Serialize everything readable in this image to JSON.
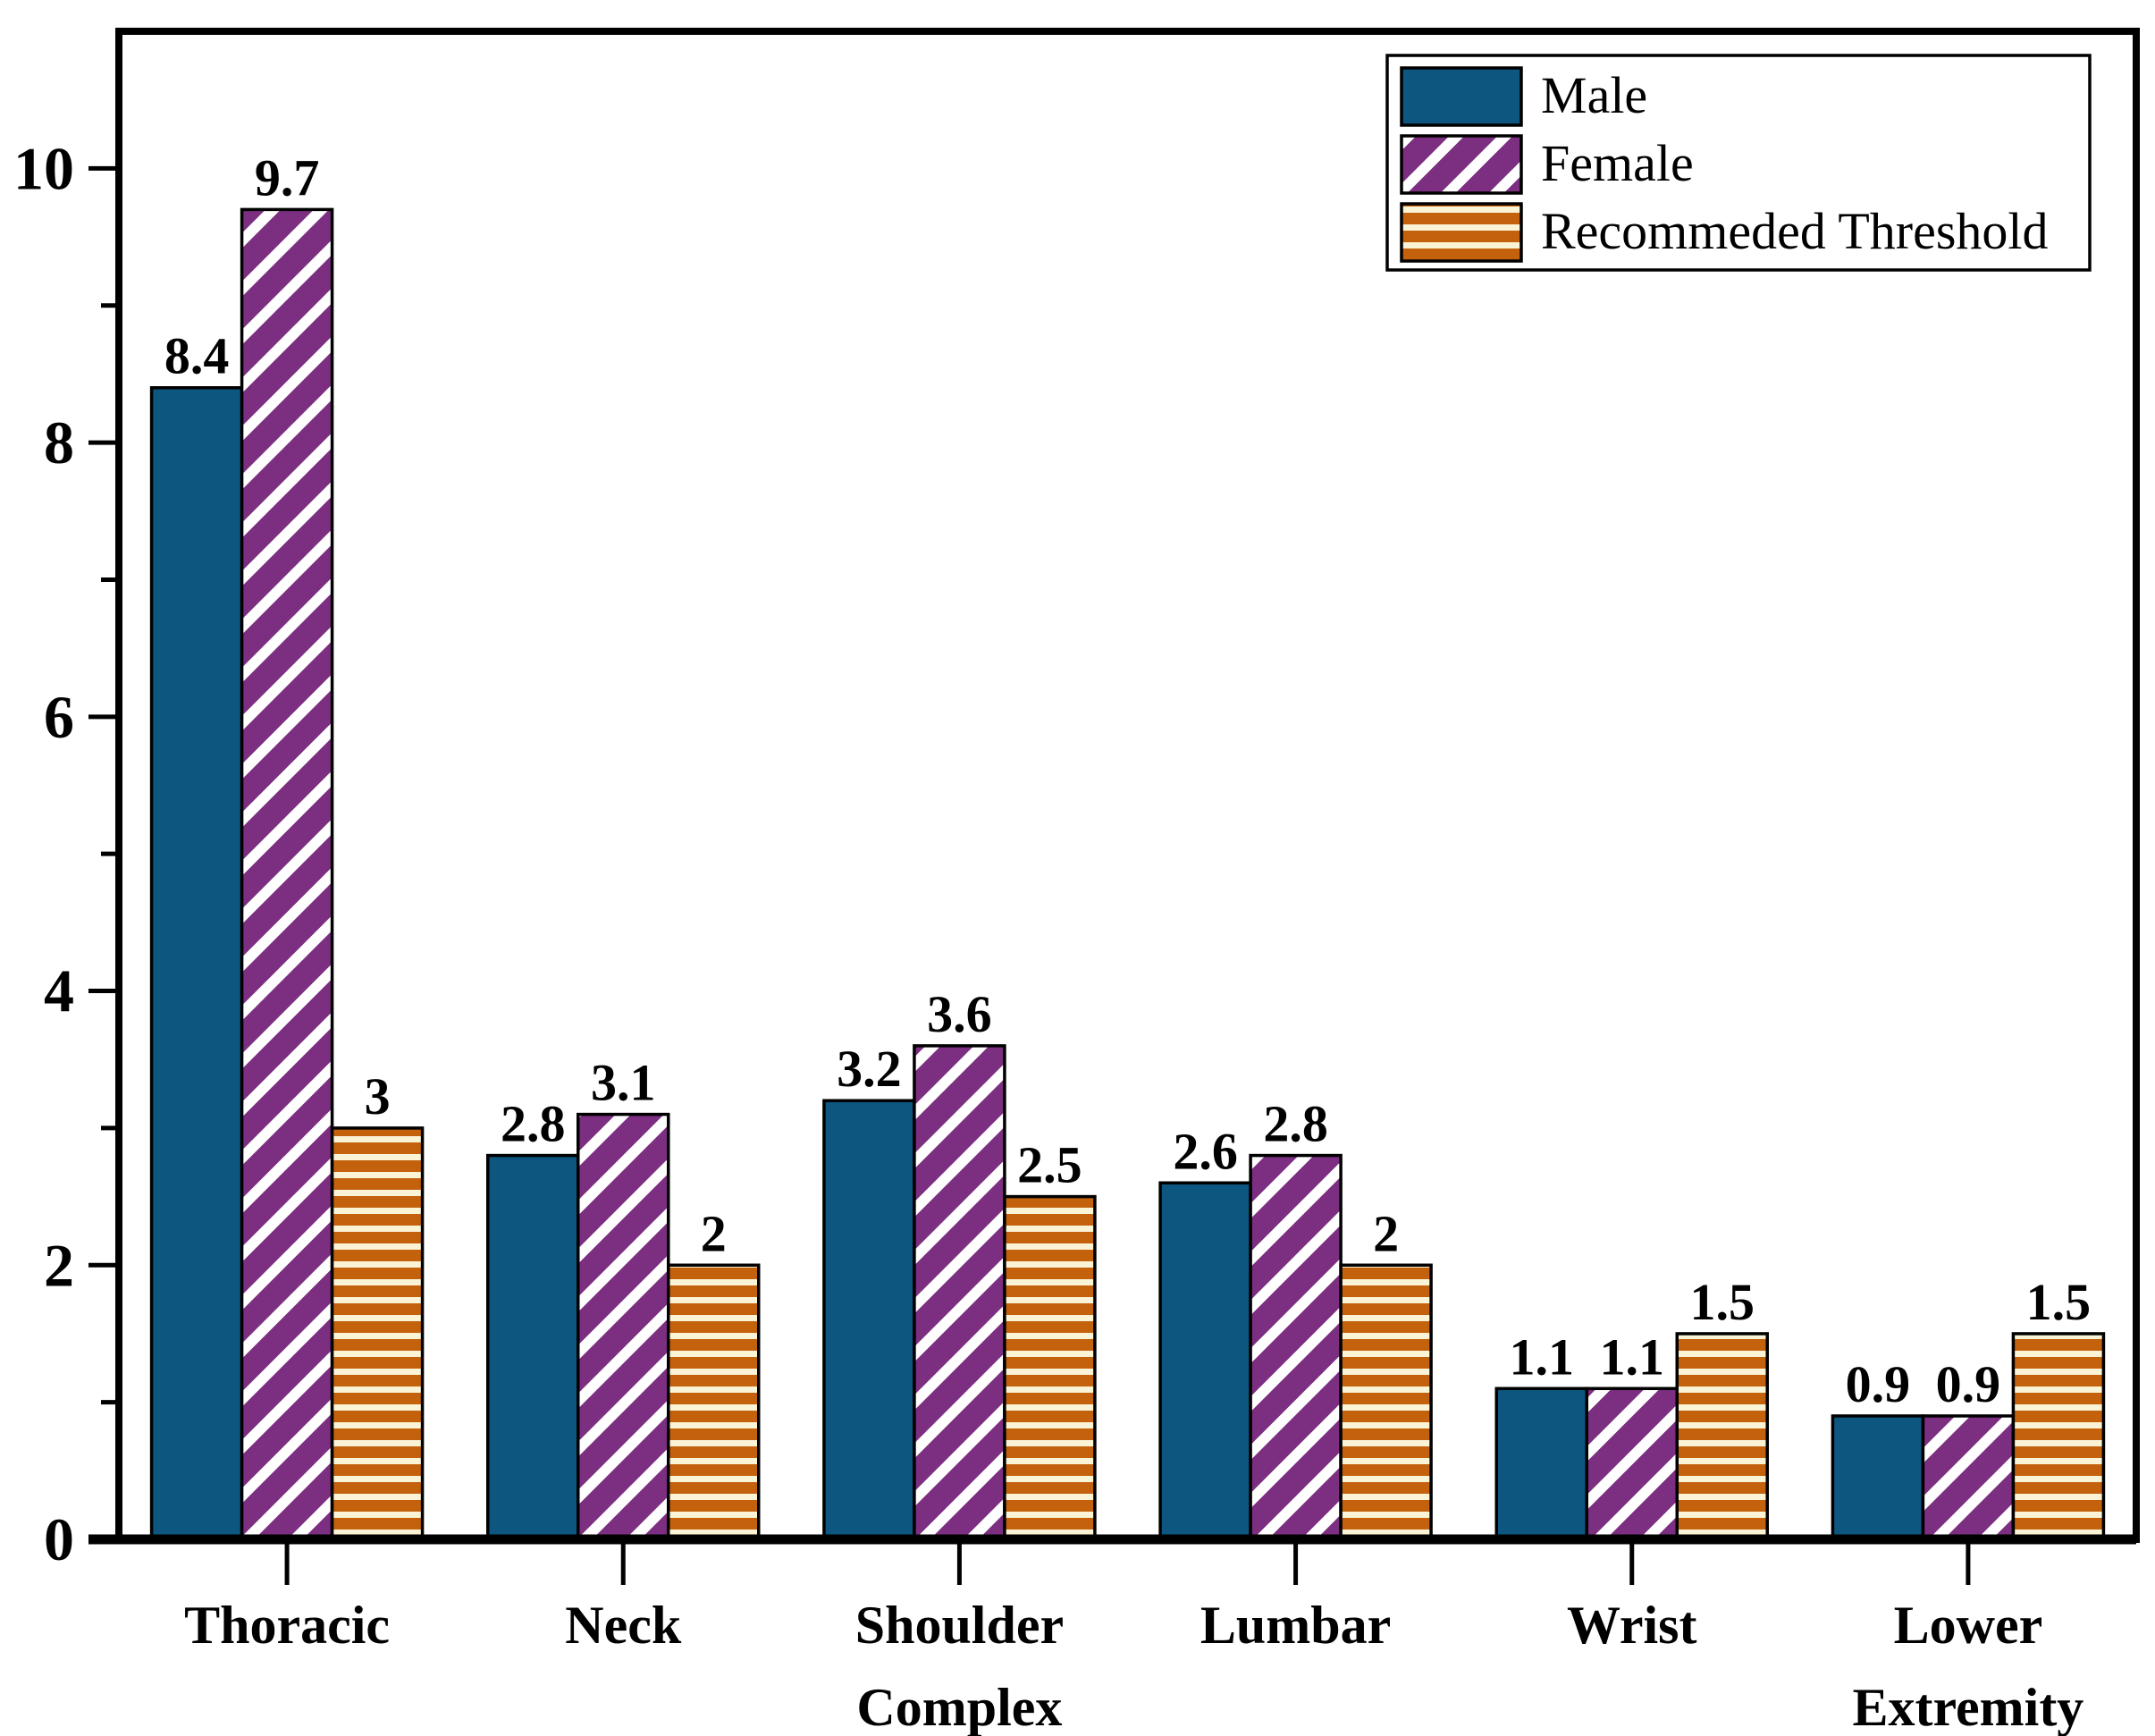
{
  "figure": {
    "background": "#ffffff",
    "border_color": "#000000"
  },
  "chart_data": {
    "type": "bar",
    "title": "",
    "xlabel": "",
    "ylabel": "",
    "grid": false,
    "categories": [
      "Thoracic",
      "Neck",
      "Shoulder Complex",
      "Lumbar",
      "Wrist",
      "Lower Extremity"
    ],
    "category_lines": [
      [
        "Thoracic"
      ],
      [
        "Neck"
      ],
      [
        "Shoulder",
        "Complex"
      ],
      [
        "Lumbar"
      ],
      [
        "Wrist"
      ],
      [
        "Lower",
        "Extremity"
      ]
    ],
    "series": [
      {
        "name": "Male",
        "values": [
          8.4,
          2.8,
          3.2,
          2.6,
          1.1,
          0.9
        ],
        "labels": [
          "8.4",
          "2.8",
          "3.2",
          "2.6",
          "1.1",
          "0.9"
        ],
        "color": "#0c5680",
        "pattern": "solid",
        "hatch_color": null
      },
      {
        "name": "Female",
        "values": [
          9.7,
          3.1,
          3.6,
          2.8,
          1.1,
          0.9
        ],
        "labels": [
          "9.7",
          "3.1",
          "3.6",
          "2.8",
          "1.1",
          "0.9"
        ],
        "color": "#7c2e80",
        "pattern": "diagonal-hatch",
        "hatch_color": "#ffffff"
      },
      {
        "name": "Recommeded Threshold",
        "values": [
          3,
          2,
          2.5,
          2,
          1.5,
          1.5
        ],
        "labels": [
          "3",
          "2",
          "2.5",
          "2",
          "1.5",
          "1.5"
        ],
        "color": "#c4610d",
        "pattern": "horizontal-stripes",
        "hatch_color": "#fbf3d5"
      }
    ],
    "yaxis": {
      "ylim": [
        0,
        11
      ],
      "major_ticks": [
        0,
        2,
        4,
        6,
        8,
        10
      ],
      "major_tick_labels": [
        "0",
        "2",
        "4",
        "6",
        "8",
        "10"
      ],
      "minor_ticks": [
        1,
        3,
        5,
        7,
        9
      ]
    },
    "legend": {
      "position": "top-right",
      "entries": [
        "Male",
        "Female",
        "Recommeded Threshold"
      ]
    },
    "bar_edge_color": "#000000",
    "value_label_color": "#000000",
    "tick_label_color": "#000000"
  }
}
